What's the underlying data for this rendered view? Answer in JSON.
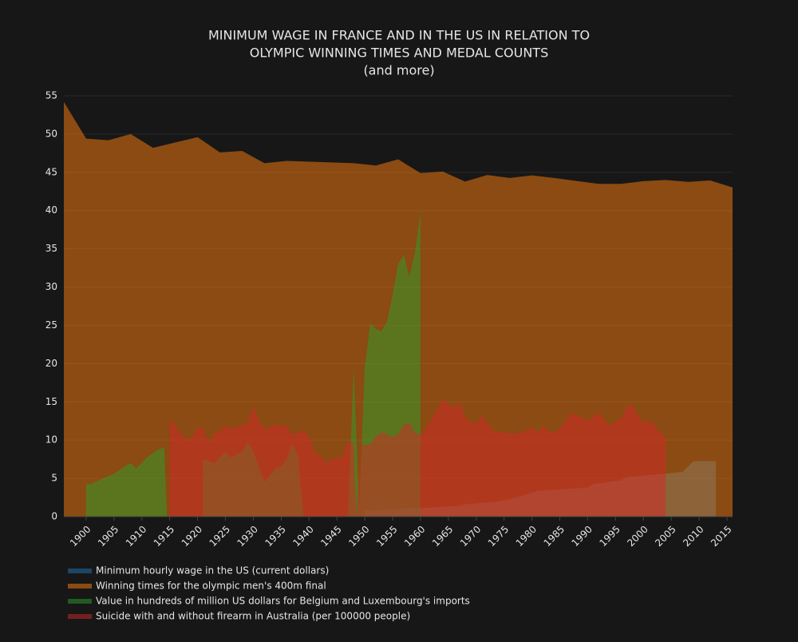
{
  "chart_data": {
    "type": "area",
    "title": [
      "MINIMUM WAGE IN FRANCE AND IN THE US IN RELATION TO",
      "OLYMPIC WINNING TIMES AND MEDAL COUNTS",
      "(and more)"
    ],
    "xlim": [
      1896,
      2016
    ],
    "xticks": [
      1900,
      1905,
      1910,
      1915,
      1920,
      1925,
      1930,
      1935,
      1940,
      1945,
      1950,
      1955,
      1960,
      1965,
      1970,
      1975,
      1980,
      1985,
      1990,
      1995,
      2000,
      2005,
      2010,
      2015
    ],
    "ylim": [
      0,
      55
    ],
    "yticks": [
      0,
      5,
      10,
      15,
      20,
      25,
      30,
      35,
      40,
      45,
      50,
      55
    ],
    "grid": true,
    "legend": "bottom",
    "series": [
      {
        "name": "Minimum hourly wage in the US (current dollars)",
        "color": "#1f77b4",
        "x": [
          1950,
          1956,
          1961,
          1963,
          1967,
          1968,
          1974,
          1975,
          1976,
          1978,
          1979,
          1980,
          1981,
          1990,
          1991,
          1996,
          1997,
          2007,
          2008,
          2009,
          2013
        ],
        "values": [
          0.75,
          1.0,
          1.15,
          1.25,
          1.4,
          1.6,
          2.0,
          2.1,
          2.3,
          2.65,
          2.9,
          3.1,
          3.35,
          3.8,
          4.25,
          4.75,
          5.15,
          5.85,
          6.55,
          7.25,
          7.25
        ]
      },
      {
        "name": "Winning times for the olympic men's 400m final",
        "color": "#ff7f0e",
        "x": [
          1896,
          1900,
          1904,
          1908,
          1912,
          1920,
          1924,
          1928,
          1932,
          1936,
          1948,
          1952,
          1956,
          1960,
          1964,
          1968,
          1972,
          1976,
          1980,
          1984,
          1988,
          1992,
          1996,
          2000,
          2004,
          2008,
          2012,
          2016
        ],
        "values": [
          54.2,
          49.4,
          49.2,
          50.0,
          48.2,
          49.6,
          47.6,
          47.8,
          46.2,
          46.5,
          46.2,
          45.9,
          46.7,
          44.9,
          45.1,
          43.8,
          44.66,
          44.26,
          44.6,
          44.27,
          43.87,
          43.5,
          43.49,
          43.84,
          44.0,
          43.75,
          43.94,
          43.03
        ]
      },
      {
        "name": "Value in hundreds of million US dollars for Belgium and Luxembourg's imports",
        "color": "#2ca02c",
        "x": [
          1900,
          1901,
          1903,
          1905,
          1907,
          1908,
          1909,
          1911,
          1913,
          1914,
          1914.5,
          1921,
          1921,
          1923,
          1925,
          1926,
          1928,
          1929,
          1930,
          1931,
          1932,
          1934,
          1935,
          1936,
          1937,
          1938,
          1939,
          1947,
          1948,
          1949,
          1950,
          1951,
          1952,
          1953,
          1954,
          1955,
          1956,
          1957,
          1958,
          1959,
          1960,
          1960
        ],
        "values": [
          4.2,
          4.3,
          5.0,
          5.6,
          6.6,
          7.0,
          6.3,
          7.8,
          8.8,
          9.0,
          0,
          0,
          7.5,
          7.0,
          8.5,
          7.7,
          8.5,
          9.8,
          8.5,
          6.5,
          4.5,
          6.3,
          6.5,
          7.5,
          9.5,
          8.0,
          0,
          0,
          19.5,
          1.0,
          19.5,
          25.3,
          24.5,
          24.2,
          25.5,
          29.0,
          33.0,
          34.2,
          31.3,
          34.5,
          39.8,
          0
        ]
      },
      {
        "name": "Suicide with and without firearm in Australia (per 100000 people)",
        "color": "#d62728",
        "x": [
          1915,
          1915,
          1918,
          1919,
          1920,
          1921,
          1922,
          1923,
          1925,
          1926,
          1928,
          1929,
          1930,
          1931,
          1932,
          1934,
          1936,
          1937,
          1939,
          1940,
          1941,
          1942,
          1943,
          1944,
          1946,
          1947,
          1948,
          1948.5,
          1949.5,
          1950,
          1951,
          1952,
          1953,
          1954,
          1955,
          1956,
          1957,
          1958,
          1959,
          1960,
          1961,
          1963,
          1964,
          1965,
          1966,
          1967,
          1968,
          1969,
          1970,
          1971,
          1972,
          1973,
          1975,
          1977,
          1979,
          1980,
          1981,
          1982,
          1983,
          1984,
          1985,
          1986,
          1987,
          1988,
          1989,
          1990,
          1991,
          1992,
          1993,
          1994,
          1995,
          1996,
          1997,
          1998,
          1999,
          2000,
          2001,
          2002,
          2003,
          2004,
          2004
        ],
        "values": [
          0,
          12.8,
          10.0,
          10.3,
          11.7,
          11.5,
          9.8,
          10.8,
          11.8,
          11.5,
          12.0,
          12.2,
          14.5,
          12.5,
          11.5,
          12.0,
          11.8,
          10.7,
          11.2,
          10.5,
          8.5,
          8.0,
          7.0,
          7.5,
          7.8,
          9.8,
          9.5,
          0,
          9.5,
          9.3,
          9.5,
          10.5,
          11.0,
          10.8,
          10.3,
          10.8,
          12.0,
          12.3,
          11.0,
          10.7,
          11.5,
          14.0,
          15.3,
          14.8,
          14.2,
          15.0,
          13.0,
          12.3,
          12.2,
          13.2,
          12.3,
          11.2,
          11.0,
          10.8,
          11.3,
          11.7,
          11.0,
          11.8,
          11.2,
          11.0,
          11.5,
          12.5,
          13.5,
          13.3,
          13.0,
          12.5,
          13.0,
          13.7,
          12.7,
          11.8,
          12.5,
          12.8,
          14.3,
          14.7,
          13.2,
          12.3,
          12.5,
          12.0,
          11.0,
          10.3,
          0
        ]
      }
    ]
  }
}
